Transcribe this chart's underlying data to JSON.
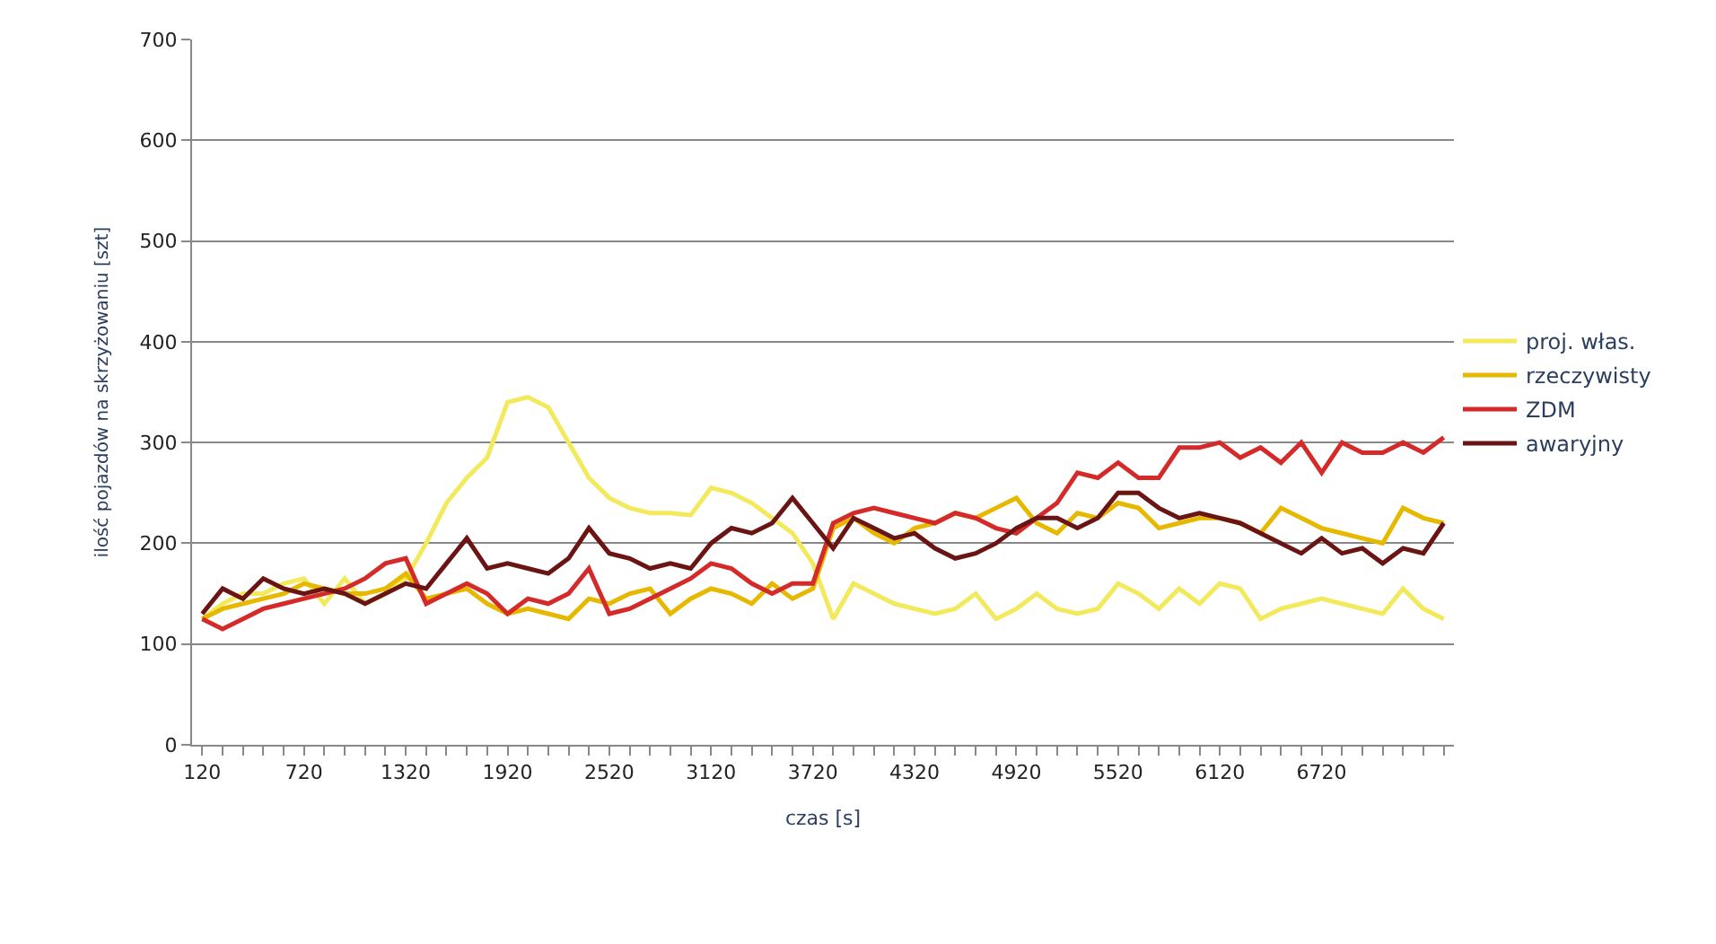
{
  "chart_data": {
    "type": "line",
    "xlabel": "czas [s]",
    "ylabel": "ilość pojazdów na skrzyżowaniu [szt]",
    "x": [
      120,
      240,
      360,
      480,
      600,
      720,
      840,
      960,
      1080,
      1200,
      1320,
      1440,
      1560,
      1680,
      1800,
      1920,
      2040,
      2160,
      2280,
      2400,
      2520,
      2640,
      2760,
      2880,
      3000,
      3120,
      3240,
      3360,
      3480,
      3600,
      3720,
      3840,
      3960,
      4080,
      4200,
      4320,
      4440,
      4560,
      4680,
      4800,
      4920,
      5040,
      5160,
      5280,
      5400,
      5520,
      5640,
      5760,
      5880,
      6000,
      6120,
      6240,
      6360,
      6480,
      6600,
      6720,
      6840,
      6960,
      7080,
      7200,
      7320,
      7440
    ],
    "series": [
      {
        "name": "proj. włas.",
        "color": "#f2ea5c",
        "values": [
          125,
          140,
          150,
          150,
          160,
          165,
          140,
          165,
          140,
          150,
          165,
          200,
          240,
          265,
          285,
          340,
          345,
          335,
          300,
          265,
          245,
          235,
          230,
          230,
          228,
          255,
          250,
          240,
          225,
          210,
          180,
          125,
          160,
          150,
          140,
          135,
          130,
          135,
          150,
          125,
          135,
          150,
          135,
          130,
          135,
          160,
          150,
          135,
          155,
          140,
          160,
          155,
          125,
          135,
          140,
          145,
          140,
          135,
          130,
          155,
          135,
          125
        ]
      },
      {
        "name": "rzeczywisty",
        "color": "#e6b800",
        "values": [
          125,
          135,
          140,
          145,
          150,
          160,
          155,
          150,
          150,
          155,
          170,
          145,
          150,
          155,
          140,
          130,
          135,
          130,
          125,
          145,
          140,
          150,
          155,
          130,
          145,
          155,
          150,
          140,
          160,
          145,
          155,
          215,
          225,
          210,
          200,
          215,
          220,
          230,
          225,
          235,
          245,
          220,
          210,
          230,
          225,
          240,
          235,
          215,
          220,
          225,
          225,
          220,
          210,
          235,
          225,
          215,
          210,
          205,
          200,
          235,
          225,
          220
        ]
      },
      {
        "name": "ZDM",
        "color": "#d42a2a",
        "values": [
          125,
          115,
          125,
          135,
          140,
          145,
          150,
          155,
          165,
          180,
          185,
          140,
          150,
          160,
          150,
          130,
          145,
          140,
          150,
          175,
          130,
          135,
          145,
          155,
          165,
          180,
          175,
          160,
          150,
          160,
          160,
          220,
          230,
          235,
          230,
          225,
          220,
          230,
          225,
          215,
          210,
          225,
          240,
          270,
          265,
          280,
          265,
          265,
          295,
          295,
          300,
          285,
          295,
          280,
          300,
          270,
          300,
          290,
          290,
          300,
          290,
          305
        ]
      },
      {
        "name": "awaryjny",
        "color": "#6b1414",
        "values": [
          130,
          155,
          145,
          165,
          155,
          150,
          155,
          150,
          140,
          150,
          160,
          155,
          180,
          205,
          175,
          180,
          175,
          170,
          185,
          215,
          190,
          185,
          175,
          180,
          175,
          200,
          215,
          210,
          220,
          245,
          220,
          195,
          225,
          215,
          205,
          210,
          195,
          185,
          190,
          200,
          215,
          225,
          225,
          215,
          225,
          250,
          250,
          235,
          225,
          230,
          225,
          220,
          210,
          200,
          190,
          205,
          190,
          195,
          180,
          195,
          190,
          220
        ]
      }
    ],
    "xlim": [
      60,
      7500
    ],
    "xticks": [
      120,
      {
        "value": 240,
        "label": null
      },
      {
        "value": 360,
        "label": null
      },
      {
        "value": 480,
        "label": null
      },
      {
        "value": 600,
        "label": null
      },
      720,
      {
        "value": 840,
        "label": null
      },
      {
        "value": 960,
        "label": null
      },
      {
        "value": 1080,
        "label": null
      },
      {
        "value": 1200,
        "label": null
      },
      1320,
      {
        "value": 1440,
        "label": null
      },
      {
        "value": 1560,
        "label": null
      },
      {
        "value": 1680,
        "label": null
      },
      {
        "value": 1800,
        "label": null
      },
      1920,
      {
        "value": 2040,
        "label": null
      },
      {
        "value": 2160,
        "label": null
      },
      {
        "value": 2280,
        "label": null
      },
      {
        "value": 2400,
        "label": null
      },
      2520,
      {
        "value": 2640,
        "label": null
      },
      {
        "value": 2760,
        "label": null
      },
      {
        "value": 2880,
        "label": null
      },
      {
        "value": 3000,
        "label": null
      },
      3120,
      {
        "value": 3240,
        "label": null
      },
      {
        "value": 3360,
        "label": null
      },
      {
        "value": 3480,
        "label": null
      },
      {
        "value": 3600,
        "label": null
      },
      3720,
      {
        "value": 3840,
        "label": null
      },
      {
        "value": 3960,
        "label": null
      },
      {
        "value": 4080,
        "label": null
      },
      {
        "value": 4200,
        "label": null
      },
      4320,
      {
        "value": 4440,
        "label": null
      },
      {
        "value": 4560,
        "label": null
      },
      {
        "value": 4680,
        "label": null
      },
      {
        "value": 4800,
        "label": null
      },
      4920,
      {
        "value": 5040,
        "label": null
      },
      {
        "value": 5160,
        "label": null
      },
      {
        "value": 5280,
        "label": null
      },
      {
        "value": 5400,
        "label": null
      },
      5520,
      {
        "value": 5640,
        "label": null
      },
      {
        "value": 5760,
        "label": null
      },
      {
        "value": 5880,
        "label": null
      },
      {
        "value": 6000,
        "label": null
      },
      6120,
      {
        "value": 6240,
        "label": null
      },
      {
        "value": 6360,
        "label": null
      },
      {
        "value": 6480,
        "label": null
      },
      {
        "value": 6600,
        "label": null
      },
      6720,
      {
        "value": 6840,
        "label": null
      },
      {
        "value": 6960,
        "label": null
      },
      {
        "value": 7080,
        "label": null
      },
      {
        "value": 7200,
        "label": null
      },
      {
        "value": 7320,
        "label": null
      },
      {
        "value": 7440,
        "label": null
      }
    ],
    "ylim": [
      0,
      700
    ],
    "yticks": [
      0,
      100,
      200,
      300,
      400,
      500,
      600,
      700
    ],
    "grid": "y",
    "legend": "right",
    "marker": "none",
    "line_style": "solid"
  }
}
